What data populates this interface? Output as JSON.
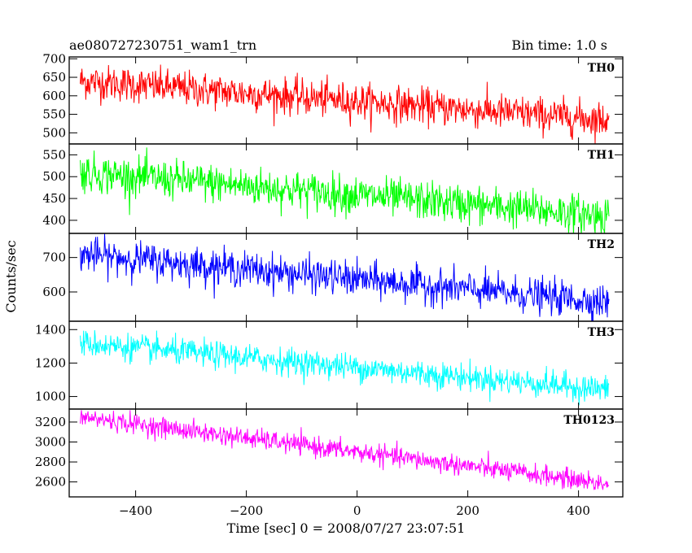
{
  "header": {
    "title": "ae080727230751_wam1_trn",
    "bin_time": "Bin time: 1.0 s"
  },
  "chart_data": {
    "type": "line",
    "xlabel": "Time [sec] 0 = 2008/07/27 23:07:51",
    "ylabel": "Counts/sec",
    "xlim": [
      -520,
      480
    ],
    "x_range_data": [
      -500,
      455
    ],
    "x_ticks": [
      -400,
      -200,
      0,
      200,
      400
    ],
    "x_tick_labels": [
      "−400",
      "−200",
      "0",
      "200",
      "400"
    ],
    "panels": [
      {
        "name": "TH0",
        "color": "#ff0000",
        "ylim": [
          470,
          705
        ],
        "y_ticks": [
          500,
          550,
          600,
          650,
          700
        ],
        "y_tick_labels": [
          "500",
          "550",
          "600",
          "650",
          "700"
        ],
        "trend_start": 640,
        "trend_end": 535,
        "noise": 24
      },
      {
        "name": "TH1",
        "color": "#00ff00",
        "ylim": [
          370,
          575
        ],
        "y_ticks": [
          400,
          450,
          500,
          550
        ],
        "y_tick_labels": [
          "400",
          "450",
          "500",
          "550"
        ],
        "trend_start": 510,
        "trend_end": 410,
        "noise": 22
      },
      {
        "name": "TH2",
        "color": "#0000ff",
        "ylim": [
          515,
          770
        ],
        "y_ticks": [
          600,
          700
        ],
        "y_tick_labels": [
          "600",
          "700"
        ],
        "trend_start": 710,
        "trend_end": 570,
        "noise": 25
      },
      {
        "name": "TH3",
        "color": "#00ffff",
        "ylim": [
          925,
          1450
        ],
        "y_ticks": [
          1000,
          1200,
          1400
        ],
        "y_tick_labels": [
          "1000",
          "1200",
          "1400"
        ],
        "trend_start": 1320,
        "trend_end": 1040,
        "noise": 40
      },
      {
        "name": "TH0123",
        "color": "#ff00ff",
        "ylim": [
          2450,
          3330
        ],
        "y_ticks": [
          2600,
          2800,
          3000,
          3200
        ],
        "y_tick_labels": [
          "2600",
          "2800",
          "3000",
          "3200"
        ],
        "trend_start": 3250,
        "trend_end": 2580,
        "noise": 50
      }
    ]
  }
}
